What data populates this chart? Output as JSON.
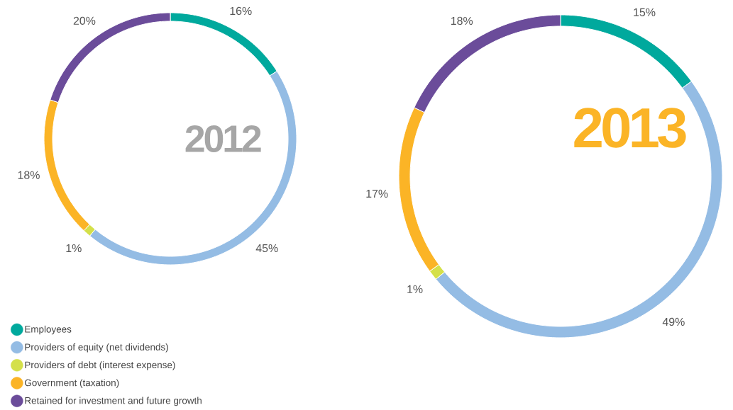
{
  "chart_data": [
    {
      "type": "donut",
      "title": "2012",
      "categories": [
        "Employees",
        "Providers of equity (net dividends)",
        "Providers of debt (interest expense)",
        "Government (taxation)",
        "Retained for investment and future growth"
      ],
      "values": [
        16,
        45,
        1,
        18,
        20
      ],
      "colors": [
        "#00a99d",
        "#94bce4",
        "#d4e04a",
        "#fbb426",
        "#6b4c9a"
      ],
      "value_labels": [
        "16%",
        "45%",
        "1%",
        "18%",
        "20%"
      ],
      "legend": "bottom left"
    },
    {
      "type": "donut",
      "title": "2013",
      "categories": [
        null,
        null,
        null,
        null,
        null
      ],
      "values": [
        15,
        49,
        1,
        17,
        18
      ],
      "colors": [
        "#00a99d",
        "#94bce4",
        "#d4e04a",
        "#fbb426",
        "#6b4c9a"
      ],
      "value_labels": [
        "15%",
        "49%",
        "1%",
        "17%",
        "18%"
      ],
      "legend": false
    }
  ]
}
